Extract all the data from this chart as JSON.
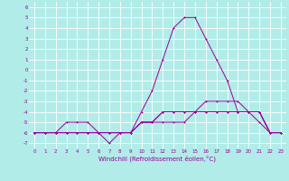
{
  "xlabel": "Windchill (Refroidissement éolien,°C)",
  "background_color": "#b2ece8",
  "grid_color": "#ffffff",
  "line_color": "#990099",
  "x": [
    0,
    1,
    2,
    3,
    4,
    5,
    6,
    7,
    8,
    9,
    10,
    11,
    12,
    13,
    14,
    15,
    16,
    17,
    18,
    19,
    20,
    21,
    22,
    23
  ],
  "y_main": [
    -6,
    -6,
    -6,
    -5,
    -5,
    -5,
    -6,
    -7,
    -6,
    -6,
    -4,
    -2,
    1,
    4,
    5,
    5,
    3,
    1,
    -1,
    -4,
    -4,
    -5,
    -6,
    -6
  ],
  "y_line2": [
    -6,
    -6,
    -6,
    -6,
    -6,
    -6,
    -6,
    -6,
    -6,
    -6,
    -5,
    -5,
    -5,
    -5,
    -5,
    -4,
    -4,
    -4,
    -4,
    -4,
    -4,
    -4,
    -6,
    -6
  ],
  "y_line3": [
    -6,
    -6,
    -6,
    -6,
    -6,
    -6,
    -6,
    -6,
    -6,
    -6,
    -5,
    -5,
    -4,
    -4,
    -4,
    -4,
    -4,
    -4,
    -4,
    -4,
    -4,
    -4,
    -6,
    -6
  ],
  "y_line4": [
    -6,
    -6,
    -6,
    -6,
    -6,
    -6,
    -6,
    -6,
    -6,
    -6,
    -5,
    -5,
    -4,
    -4,
    -4,
    -4,
    -3,
    -3,
    -3,
    -3,
    -4,
    -4,
    -6,
    -6
  ],
  "ylim": [
    -7.5,
    6.5
  ],
  "xlim": [
    -0.5,
    23.5
  ],
  "yticks": [
    6,
    5,
    4,
    3,
    2,
    1,
    0,
    -1,
    -2,
    -3,
    -4,
    -5,
    -6,
    -7
  ],
  "xticks": [
    0,
    1,
    2,
    3,
    4,
    5,
    6,
    7,
    8,
    9,
    10,
    11,
    12,
    13,
    14,
    15,
    16,
    17,
    18,
    19,
    20,
    21,
    22,
    23
  ],
  "xlabel_fontsize": 5,
  "tick_fontsize": 4,
  "linewidth": 0.7,
  "markersize": 2,
  "markeredgewidth": 0.7
}
